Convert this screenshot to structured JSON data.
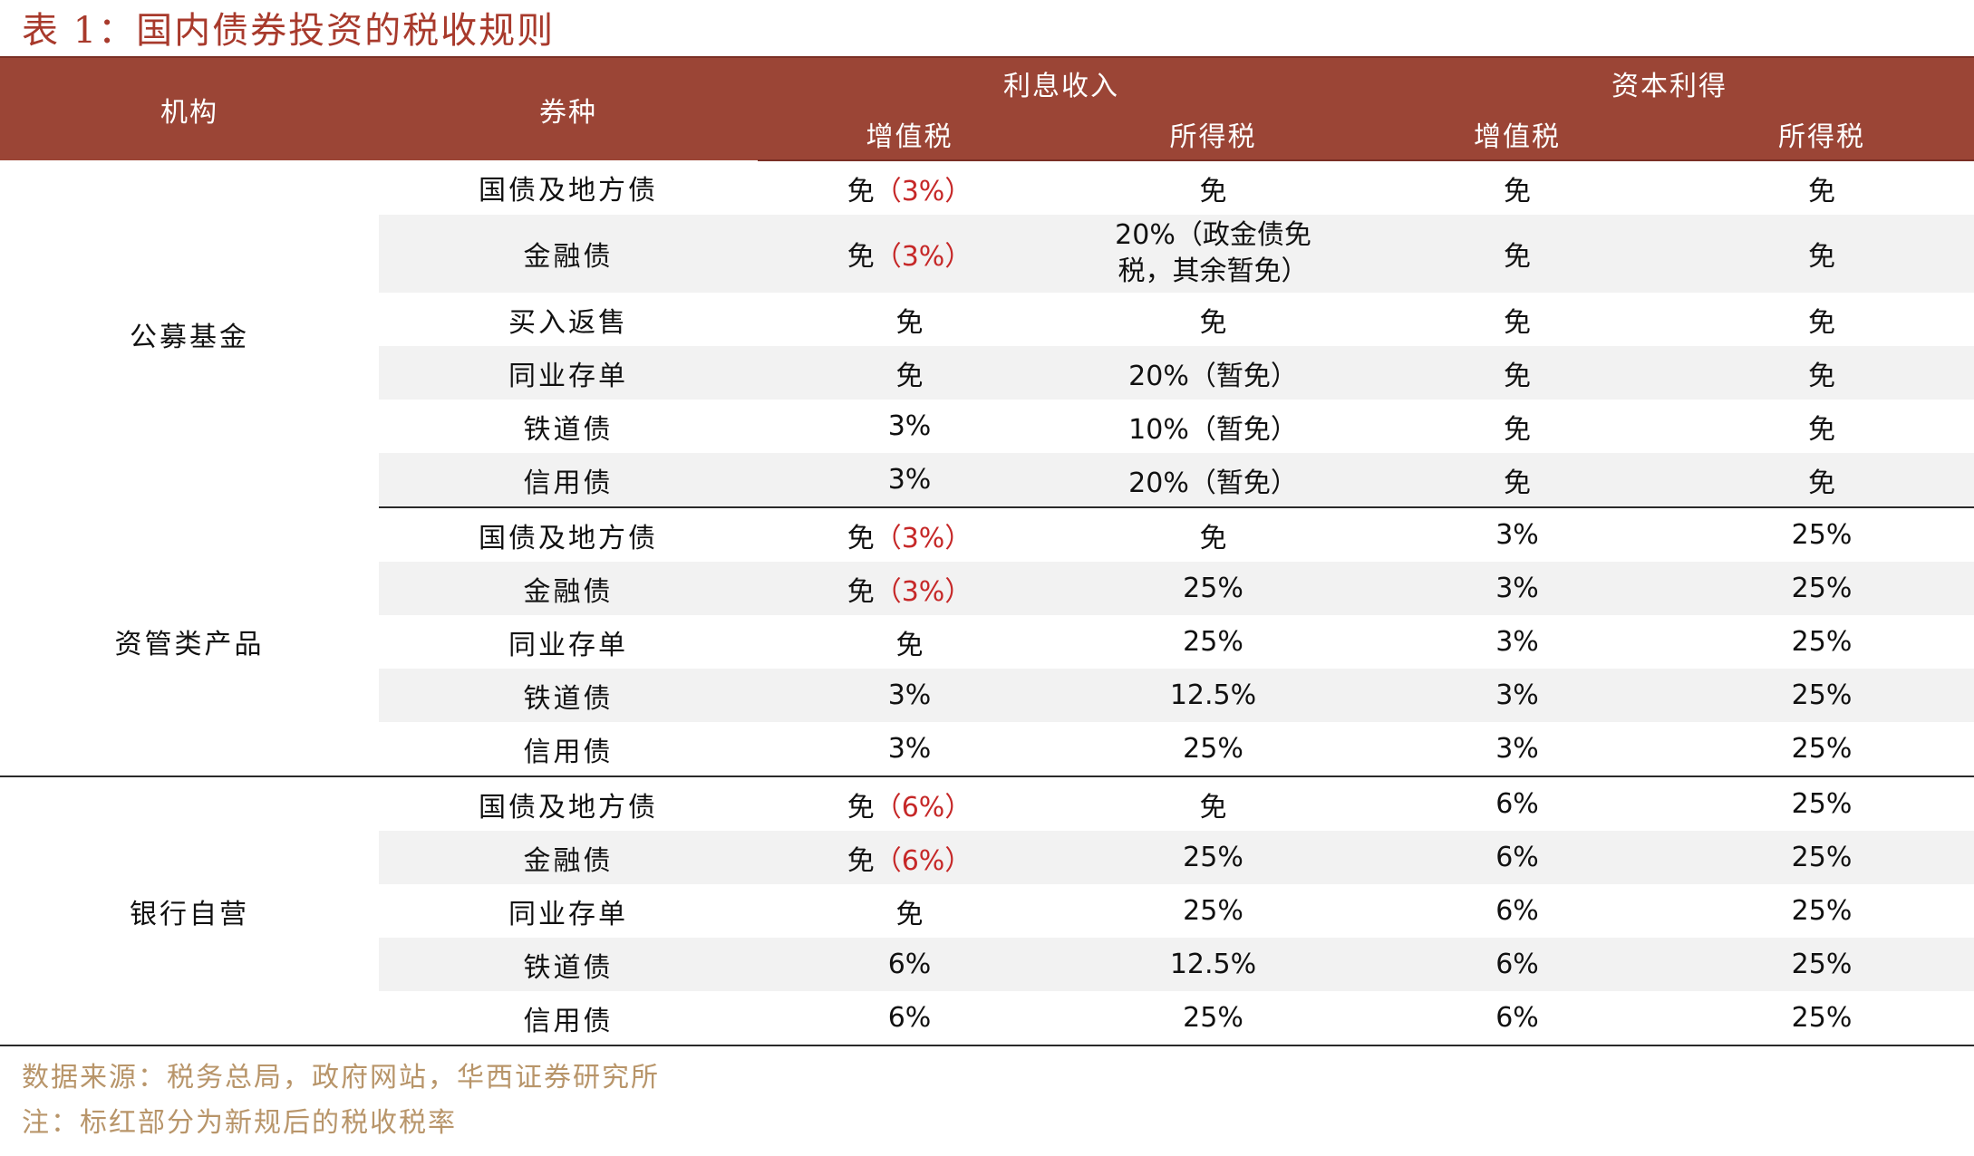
{
  "title": "表 1：国内债券投资的税收规则",
  "header": {
    "institution": "机构",
    "bond_type": "券种",
    "interest_income": "利息收入",
    "capital_gain": "资本利得",
    "vat": "增值税",
    "income_tax": "所得税"
  },
  "groups": [
    {
      "institution": "公募基金",
      "rows": [
        {
          "bond": "国债及地方债",
          "ii_vat": "免",
          "ii_vat_rate": "（3%）",
          "ii_income": "免",
          "cg_vat": "免",
          "cg_income": "免"
        },
        {
          "bond": "金融债",
          "ii_vat": "免",
          "ii_vat_rate": "（3%）",
          "ii_income_l1": "20%（政金债免",
          "ii_income_l2": "税，其余暂免）",
          "cg_vat": "免",
          "cg_income": "免"
        },
        {
          "bond": "买入返售",
          "ii_vat": "免",
          "ii_income": "免",
          "cg_vat": "免",
          "cg_income": "免"
        },
        {
          "bond": "同业存单",
          "ii_vat": "免",
          "ii_income": "20%（暂免）",
          "cg_vat": "免",
          "cg_income": "免"
        },
        {
          "bond": "铁道债",
          "ii_vat": "3%",
          "ii_income": "10%（暂免）",
          "cg_vat": "免",
          "cg_income": "免"
        },
        {
          "bond": "信用债",
          "ii_vat": "3%",
          "ii_income": "20%（暂免）",
          "cg_vat": "免",
          "cg_income": "免"
        }
      ]
    },
    {
      "institution": "资管类产品",
      "rows": [
        {
          "bond": "国债及地方债",
          "ii_vat": "免",
          "ii_vat_rate": "（3%）",
          "ii_income": "免",
          "cg_vat": "3%",
          "cg_income": "25%"
        },
        {
          "bond": "金融债",
          "ii_vat": "免",
          "ii_vat_rate": "（3%）",
          "ii_income": "25%",
          "cg_vat": "3%",
          "cg_income": "25%"
        },
        {
          "bond": "同业存单",
          "ii_vat": "免",
          "ii_income": "25%",
          "cg_vat": "3%",
          "cg_income": "25%"
        },
        {
          "bond": "铁道债",
          "ii_vat": "3%",
          "ii_income": "12.5%",
          "cg_vat": "3%",
          "cg_income": "25%"
        },
        {
          "bond": "信用债",
          "ii_vat": "3%",
          "ii_income": "25%",
          "cg_vat": "3%",
          "cg_income": "25%"
        }
      ]
    },
    {
      "institution": "银行自营",
      "rows": [
        {
          "bond": "国债及地方债",
          "ii_vat": "免",
          "ii_vat_rate": "（6%）",
          "ii_income": "免",
          "cg_vat": "6%",
          "cg_income": "25%"
        },
        {
          "bond": "金融债",
          "ii_vat": "免",
          "ii_vat_rate": "（6%）",
          "ii_income": "25%",
          "cg_vat": "6%",
          "cg_income": "25%"
        },
        {
          "bond": "同业存单",
          "ii_vat": "免",
          "ii_income": "25%",
          "cg_vat": "6%",
          "cg_income": "25%"
        },
        {
          "bond": "铁道债",
          "ii_vat": "6%",
          "ii_income": "12.5%",
          "cg_vat": "6%",
          "cg_income": "25%"
        },
        {
          "bond": "信用债",
          "ii_vat": "6%",
          "ii_income": "25%",
          "cg_vat": "6%",
          "cg_income": "25%"
        }
      ]
    }
  ],
  "footnotes": {
    "source": "数据来源：税务总局，政府网站，华西证券研究所",
    "note": "注：标红部分为新规后的税收税率"
  },
  "colors": {
    "header_bg": "#9b4536",
    "title": "#a83a2c",
    "highlight_red": "#c62828",
    "footnote": "#b8956a",
    "stripe": "#f2f2f2"
  }
}
